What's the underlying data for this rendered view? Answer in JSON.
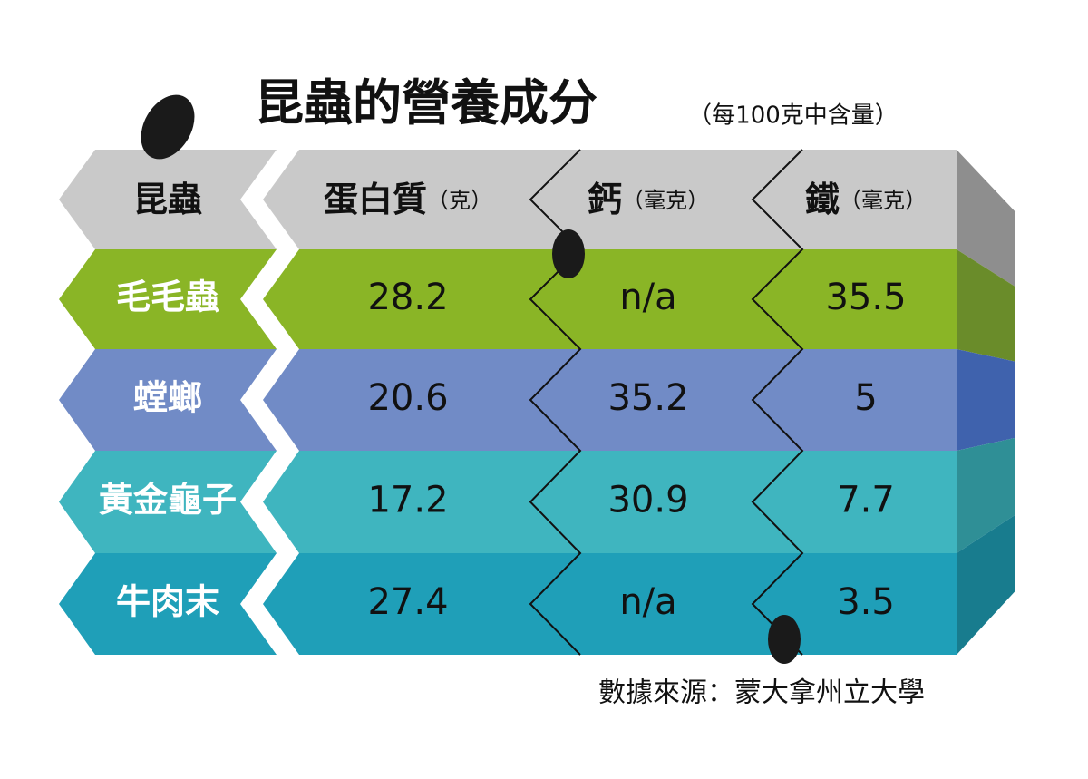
{
  "header": {
    "title": "昆蟲的營養成分",
    "subtitle": "（每100克中含量）"
  },
  "table": {
    "columns": [
      {
        "name": "昆蟲"
      },
      {
        "name": "蛋白質",
        "unit": "（克）"
      },
      {
        "name": "鈣",
        "unit": "（毫克）"
      },
      {
        "name": "鐵",
        "unit": "（毫克）"
      }
    ],
    "rows": [
      [
        "毛毛蟲",
        28.2,
        "n/a",
        35.5
      ],
      [
        "螳螂",
        20.6,
        35.2,
        5
      ],
      [
        "黃金龜子",
        17.2,
        30.9,
        7.7
      ],
      [
        "牛肉末",
        27.4,
        "n/a",
        3.5
      ]
    ]
  },
  "footer": {
    "source": "數據來源：蒙大拿州立大學"
  }
}
